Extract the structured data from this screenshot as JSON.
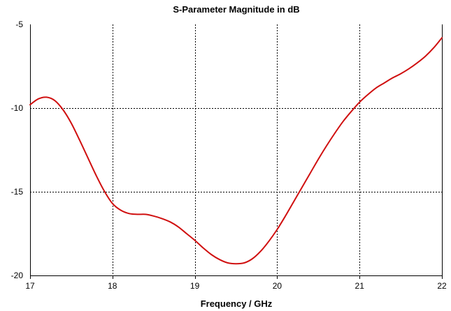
{
  "chart_data": {
    "type": "line",
    "title": "S-Parameter Magnitude in dB",
    "xlabel": "Frequency / GHz",
    "ylabel": "",
    "xlim": [
      17,
      22
    ],
    "ylim": [
      -20,
      -5
    ],
    "x_ticks": [
      17,
      18,
      19,
      20,
      21,
      22
    ],
    "y_ticks": [
      -5,
      -10,
      -15,
      -20
    ],
    "x_tick_labels": [
      "17",
      "18",
      "19",
      "20",
      "21",
      "22"
    ],
    "y_tick_labels": [
      "-5",
      "-10",
      "-15",
      "-20"
    ],
    "grid": true,
    "legend": "none",
    "series": [
      {
        "color": "#d01010",
        "x": [
          17.0,
          17.1,
          17.2,
          17.3,
          17.4,
          17.5,
          17.6,
          17.7,
          17.8,
          17.9,
          18.0,
          18.1,
          18.2,
          18.3,
          18.4,
          18.5,
          18.6,
          18.7,
          18.8,
          18.9,
          19.0,
          19.1,
          19.2,
          19.3,
          19.4,
          19.5,
          19.6,
          19.7,
          19.8,
          19.9,
          20.0,
          20.1,
          20.2,
          20.3,
          20.4,
          20.5,
          20.6,
          20.7,
          20.8,
          20.9,
          21.0,
          21.1,
          21.2,
          21.3,
          21.4,
          21.5,
          21.6,
          21.7,
          21.8,
          21.9,
          22.0
        ],
        "y": [
          -9.8,
          -9.45,
          -9.35,
          -9.55,
          -10.1,
          -10.9,
          -11.9,
          -12.95,
          -14.0,
          -14.95,
          -15.7,
          -16.1,
          -16.3,
          -16.35,
          -16.35,
          -16.45,
          -16.6,
          -16.8,
          -17.1,
          -17.5,
          -17.9,
          -18.35,
          -18.75,
          -19.05,
          -19.25,
          -19.3,
          -19.25,
          -19.0,
          -18.55,
          -17.95,
          -17.25,
          -16.45,
          -15.6,
          -14.75,
          -13.9,
          -13.05,
          -12.25,
          -11.5,
          -10.8,
          -10.2,
          -9.65,
          -9.2,
          -8.8,
          -8.5,
          -8.2,
          -7.95,
          -7.65,
          -7.3,
          -6.9,
          -6.4,
          -5.8
        ]
      }
    ]
  }
}
